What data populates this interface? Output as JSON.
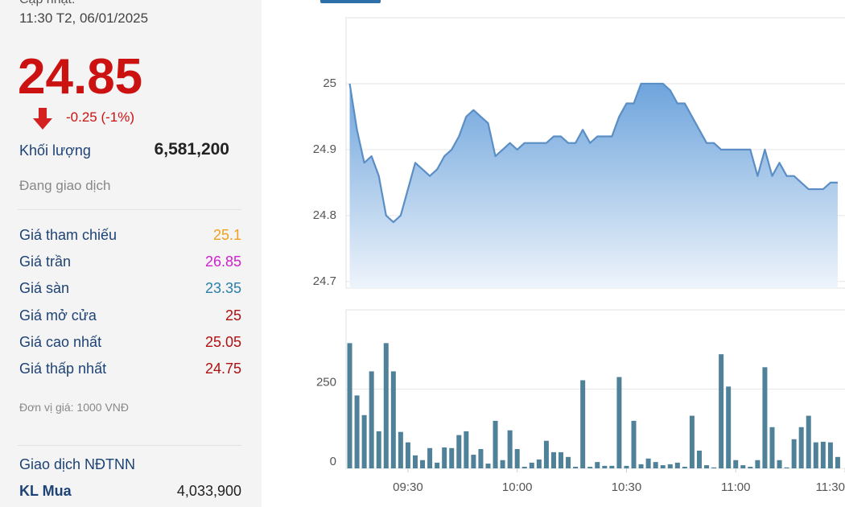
{
  "panel": {
    "update_label": "Cập nhật:",
    "update_time": "11:30 T2, 06/01/2025",
    "price": 24.85,
    "change": "-0.25 (-1%)",
    "volume_label": "Khối lượng",
    "volume": "6,581,200",
    "status": "Đang giao dịch",
    "rows": [
      {
        "label": "Giá tham chiếu",
        "value": 25.1,
        "color": "#f0a020"
      },
      {
        "label": "Giá trần",
        "value": 26.85,
        "color": "#d020d0"
      },
      {
        "label": "Giá sàn",
        "value": 23.35,
        "color": "#2a7fa8"
      },
      {
        "label": "Giá mở cửa",
        "value": 25,
        "color": "#b01010"
      },
      {
        "label": "Giá cao nhất",
        "value": 25.05,
        "color": "#b01010"
      },
      {
        "label": "Giá thấp nhất",
        "value": 24.75,
        "color": "#b01010"
      }
    ],
    "unit_note": "Đơn vị giá: 1000 VNĐ",
    "foreign_title": "Giao dịch NĐTNN",
    "foreign_buy_label": "KL Mua",
    "foreign_buy": "4,033,900"
  },
  "chart_data": [
    {
      "type": "area",
      "color": "#5a8ec4",
      "x": [
        "09:14",
        "09:16",
        "09:18",
        "09:20",
        "09:22",
        "09:24",
        "09:26",
        "09:28",
        "09:30",
        "09:32",
        "09:34",
        "09:36",
        "09:38",
        "09:40",
        "09:42",
        "09:44",
        "09:46",
        "09:48",
        "09:50",
        "09:52",
        "09:54",
        "09:56",
        "09:58",
        "10:00",
        "10:02",
        "10:04",
        "10:06",
        "10:08",
        "10:10",
        "10:12",
        "10:14",
        "10:16",
        "10:18",
        "10:20",
        "10:22",
        "10:24",
        "10:26",
        "10:28",
        "10:30",
        "10:32",
        "10:34",
        "10:36",
        "10:38",
        "10:40",
        "10:42",
        "10:44",
        "10:46",
        "10:48",
        "10:50",
        "10:52",
        "10:54",
        "10:56",
        "10:58",
        "11:00",
        "11:02",
        "11:04",
        "11:06",
        "11:08",
        "11:10",
        "11:12",
        "11:14",
        "11:16",
        "11:18",
        "11:20",
        "11:22",
        "11:24",
        "11:26",
        "11:28"
      ],
      "values": [
        25.0,
        24.93,
        24.88,
        24.89,
        24.86,
        24.8,
        24.79,
        24.8,
        24.84,
        24.88,
        24.87,
        24.86,
        24.87,
        24.89,
        24.9,
        24.92,
        24.95,
        24.96,
        24.95,
        24.94,
        24.89,
        24.9,
        24.91,
        24.9,
        24.91,
        24.91,
        24.91,
        24.91,
        24.92,
        24.92,
        24.91,
        24.91,
        24.93,
        24.91,
        24.92,
        24.92,
        24.92,
        24.95,
        24.97,
        24.97,
        25.0,
        25.0,
        25.0,
        25.0,
        24.99,
        24.97,
        24.97,
        24.95,
        24.93,
        24.91,
        24.91,
        24.9,
        24.9,
        24.9,
        24.9,
        24.9,
        24.86,
        24.9,
        24.86,
        24.88,
        24.86,
        24.86,
        24.85,
        24.84,
        24.84,
        24.84,
        24.85,
        24.85
      ],
      "xlim": [
        "09:13",
        "11:30"
      ],
      "ylim": [
        24.69,
        25.1
      ],
      "yticks": [
        24.7,
        24.8,
        24.9,
        25
      ],
      "grid": true
    },
    {
      "type": "bar",
      "color": "#4f8199",
      "x": [
        "09:14",
        "09:16",
        "09:18",
        "09:20",
        "09:22",
        "09:24",
        "09:26",
        "09:28",
        "09:30",
        "09:32",
        "09:34",
        "09:36",
        "09:38",
        "09:40",
        "09:42",
        "09:44",
        "09:46",
        "09:48",
        "09:50",
        "09:52",
        "09:54",
        "09:56",
        "09:58",
        "10:00",
        "10:02",
        "10:04",
        "10:06",
        "10:08",
        "10:10",
        "10:12",
        "10:14",
        "10:16",
        "10:18",
        "10:20",
        "10:22",
        "10:24",
        "10:26",
        "10:28",
        "10:30",
        "10:32",
        "10:34",
        "10:36",
        "10:38",
        "10:40",
        "10:42",
        "10:44",
        "10:46",
        "10:48",
        "10:50",
        "10:52",
        "10:54",
        "10:56",
        "10:58",
        "11:00",
        "11:02",
        "11:04",
        "11:06",
        "11:08",
        "11:10",
        "11:12",
        "11:14",
        "11:16",
        "11:18",
        "11:20",
        "11:22",
        "11:24",
        "11:26",
        "11:28"
      ],
      "values": [
        395,
        230,
        168,
        306,
        117,
        395,
        306,
        115,
        82,
        41,
        26,
        64,
        18,
        66,
        64,
        105,
        117,
        43,
        61,
        15,
        150,
        26,
        120,
        61,
        5,
        18,
        28,
        87,
        51,
        51,
        36,
        5,
        278,
        5,
        20,
        8,
        8,
        288,
        8,
        150,
        13,
        31,
        20,
        10,
        13,
        18,
        5,
        166,
        56,
        10,
        3,
        360,
        258,
        26,
        10,
        5,
        26,
        319,
        130,
        26,
        3,
        92,
        130,
        166,
        82,
        84,
        82,
        36
      ],
      "xlim": [
        "09:13",
        "11:30"
      ],
      "xticks": [
        "09:30",
        "10:00",
        "10:30",
        "11:00",
        "11:30"
      ],
      "ylim": [
        0,
        500
      ],
      "yticks": [
        0,
        250
      ],
      "grid": true
    }
  ]
}
